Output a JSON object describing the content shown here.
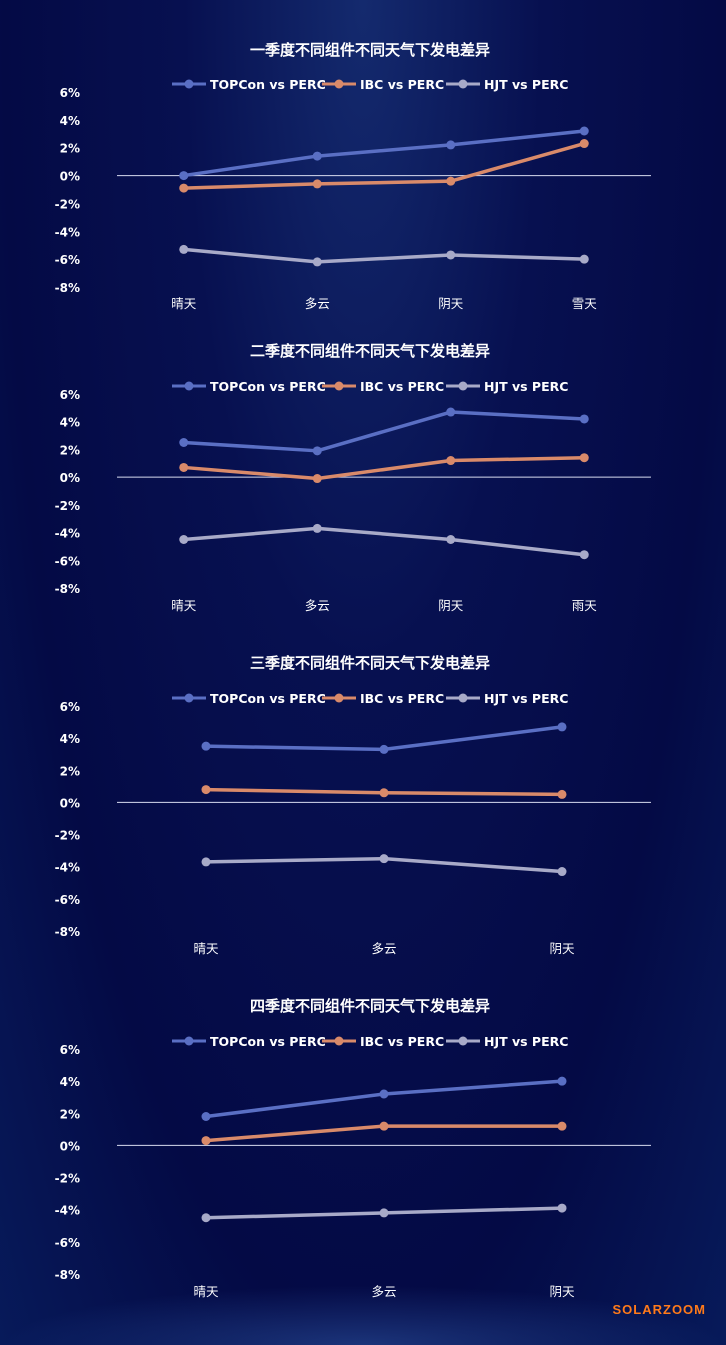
{
  "colors": {
    "TOPCon vs PERC": "#5a6fc4",
    "IBC vs PERC": "#d98a6a",
    "HJT vs PERC": "#a8aac8"
  },
  "watermark": "SOLARZOOM",
  "chart_data": [
    {
      "type": "line",
      "title": "一季度不同组件不同天气下发电差异",
      "categories": [
        "晴天",
        "多云",
        "阴天",
        "雪天"
      ],
      "ylim": [
        -8,
        6
      ],
      "yticks": [
        "6%",
        "4%",
        "2%",
        "0%",
        "-2%",
        "-4%",
        "-6%",
        "-8%"
      ],
      "legend": "top",
      "series": [
        {
          "name": "TOPCon vs PERC",
          "values": [
            0.0,
            1.4,
            2.2,
            3.2
          ]
        },
        {
          "name": "IBC vs PERC",
          "values": [
            -0.9,
            -0.6,
            -0.4,
            2.3
          ]
        },
        {
          "name": "HJT vs PERC",
          "values": [
            -5.3,
            -6.2,
            -5.7,
            -6.0
          ]
        }
      ]
    },
    {
      "type": "line",
      "title": "二季度不同组件不同天气下发电差异",
      "categories": [
        "晴天",
        "多云",
        "阴天",
        "雨天"
      ],
      "ylim": [
        -8,
        6
      ],
      "yticks": [
        "6%",
        "4%",
        "2%",
        "0%",
        "-2%",
        "-4%",
        "-6%",
        "-8%"
      ],
      "legend": "top",
      "series": [
        {
          "name": "TOPCon vs PERC",
          "values": [
            2.5,
            1.9,
            4.7,
            4.2
          ]
        },
        {
          "name": "IBC vs PERC",
          "values": [
            0.7,
            -0.1,
            1.2,
            1.4
          ]
        },
        {
          "name": "HJT vs PERC",
          "values": [
            -4.5,
            -3.7,
            -4.5,
            -5.6
          ]
        }
      ]
    },
    {
      "type": "line",
      "title": "三季度不同组件不同天气下发电差异",
      "categories": [
        "晴天",
        "多云",
        "阴天"
      ],
      "ylim": [
        -8,
        6
      ],
      "yticks": [
        "6%",
        "4%",
        "2%",
        "0%",
        "-2%",
        "-4%",
        "-6%",
        "-8%"
      ],
      "legend": "top",
      "series": [
        {
          "name": "TOPCon vs PERC",
          "values": [
            3.5,
            3.3,
            4.7
          ]
        },
        {
          "name": "IBC vs PERC",
          "values": [
            0.8,
            0.6,
            0.5
          ]
        },
        {
          "name": "HJT vs PERC",
          "values": [
            -3.7,
            -3.5,
            -4.3
          ]
        }
      ]
    },
    {
      "type": "line",
      "title": "四季度不同组件不同天气下发电差异",
      "categories": [
        "晴天",
        "多云",
        "阴天"
      ],
      "ylim": [
        -8,
        6
      ],
      "yticks": [
        "6%",
        "4%",
        "2%",
        "0%",
        "-2%",
        "-4%",
        "-6%",
        "-8%"
      ],
      "legend": "top",
      "series": [
        {
          "name": "TOPCon vs PERC",
          "values": [
            1.8,
            3.2,
            4.0
          ]
        },
        {
          "name": "IBC vs PERC",
          "values": [
            0.3,
            1.2,
            1.2
          ]
        },
        {
          "name": "HJT vs PERC",
          "values": [
            -4.5,
            -4.2,
            -3.9
          ]
        }
      ]
    }
  ]
}
